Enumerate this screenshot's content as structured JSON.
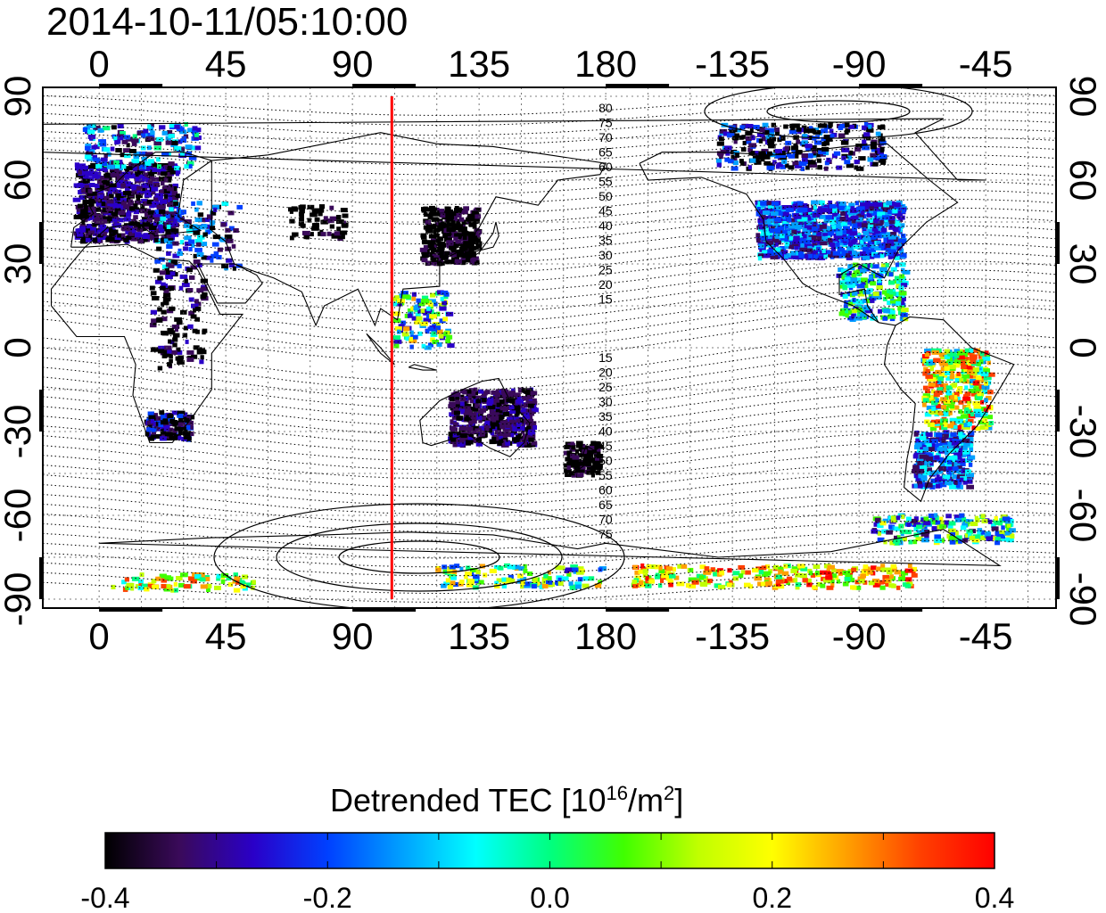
{
  "title": "2014-10-11/05:10:00",
  "map": {
    "lon_ticks": [
      "0",
      "45",
      "90",
      "135",
      "180",
      "-135",
      "-90",
      "-45"
    ],
    "lat_ticks": [
      "90",
      "60",
      "30",
      "0",
      "-30",
      "-60",
      "-90"
    ],
    "terminator_longitude_deg": 104,
    "terminator_color": "#ff0000",
    "north_contour_labels": [
      "80",
      "75",
      "70",
      "65",
      "60",
      "55",
      "50",
      "45",
      "40",
      "35",
      "30",
      "25",
      "20",
      "15"
    ],
    "south_contour_labels": [
      "15",
      "20",
      "25",
      "30",
      "35",
      "40",
      "45",
      "50",
      "55",
      "60",
      "65",
      "70",
      "75"
    ]
  },
  "colorbar": {
    "title_main": "Detrended TEC  [10",
    "title_exp1": "16",
    "title_mid": "/m",
    "title_exp2": "2",
    "title_end": "]",
    "min": -0.4,
    "max": 0.4,
    "tick_labels": [
      "-0.4",
      "-0.2",
      "0.0",
      "0.2",
      "0.4"
    ],
    "colors": [
      "#000000",
      "#3a0a5a",
      "#2a00c8",
      "#0040ff",
      "#00a0ff",
      "#00ffff",
      "#00ff80",
      "#40ff00",
      "#c0ff00",
      "#ffff00",
      "#ffa000",
      "#ff4000",
      "#ff0000"
    ]
  }
}
